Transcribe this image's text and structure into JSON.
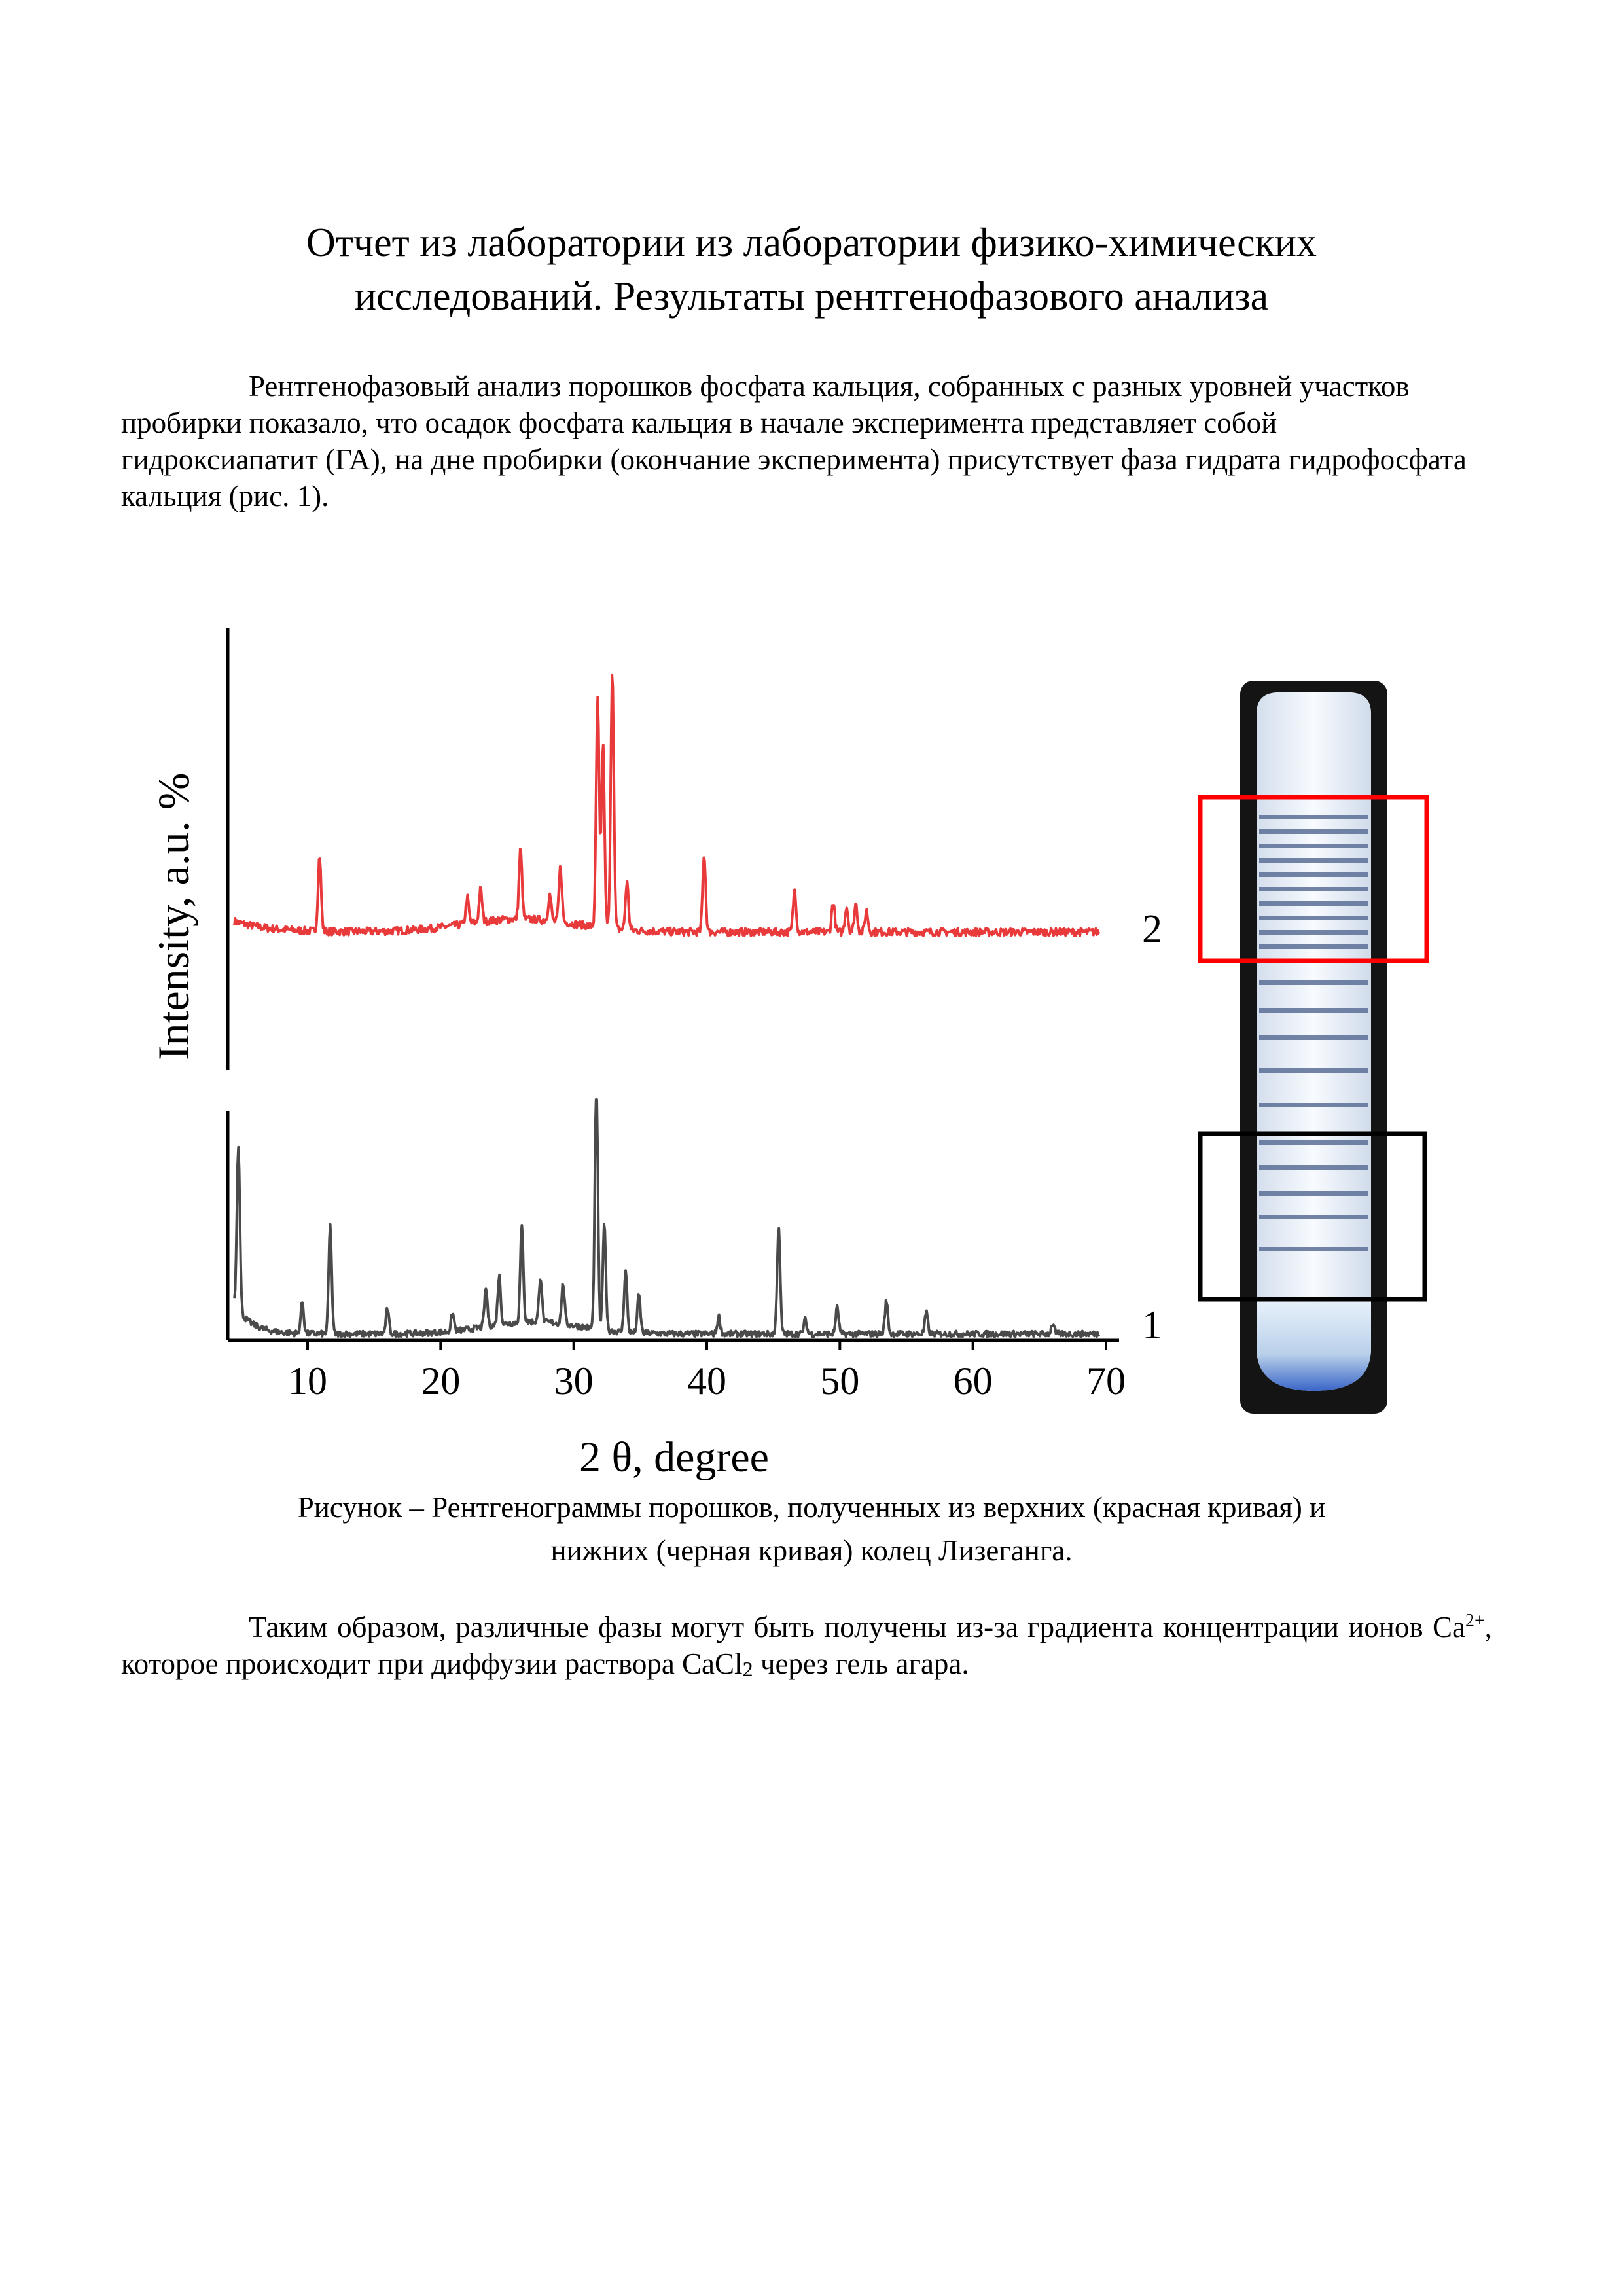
{
  "title": {
    "line1": "Отчет из лаборатории из лаборатории физико-химических",
    "line2": "исследований. Результаты рентгенофазового анализа"
  },
  "paragraph1": "Рентгенофазовый анализ порошков фосфата кальция, собранных с разных уровней участков пробирки показало, что осадок фосфата кальция в начале эксперимента представляет собой гидроксиапатит (ГА), на дне пробирки (окончание эксперимента) присутствует фаза гидрата гидрофосфата кальция (рис. 1).",
  "chart_data": {
    "type": "line",
    "ylabel": "Intensity, a.u. %",
    "xlabel": "2 θ, degree",
    "xlim": [
      4,
      70
    ],
    "x_ticks": [
      "10",
      "20",
      "30",
      "40",
      "50",
      "60",
      "70"
    ],
    "grid": false,
    "series": [
      {
        "name": "2",
        "color": "#e8393b",
        "baseline": 0.14,
        "peaks": [
          [
            10.9,
            0.35
          ],
          [
            22.0,
            0.12
          ],
          [
            23.0,
            0.15
          ],
          [
            26.0,
            0.32
          ],
          [
            28.2,
            0.12
          ],
          [
            29.0,
            0.25
          ],
          [
            31.8,
            1.05
          ],
          [
            32.2,
            0.85
          ],
          [
            32.9,
            1.2
          ],
          [
            34.0,
            0.22
          ],
          [
            39.8,
            0.36
          ],
          [
            46.6,
            0.2
          ],
          [
            49.5,
            0.14
          ],
          [
            50.5,
            0.12
          ],
          [
            51.2,
            0.13
          ],
          [
            52.0,
            0.1
          ]
        ]
      },
      {
        "name": "1",
        "color": "#4a4a4a",
        "baseline": 0.0,
        "peaks": [
          [
            4.8,
            0.95
          ],
          [
            9.6,
            0.18
          ],
          [
            11.7,
            0.62
          ],
          [
            16.0,
            0.14
          ],
          [
            20.9,
            0.1
          ],
          [
            23.4,
            0.22
          ],
          [
            24.4,
            0.28
          ],
          [
            26.1,
            0.55
          ],
          [
            27.5,
            0.26
          ],
          [
            29.2,
            0.23
          ],
          [
            31.7,
            1.45
          ],
          [
            32.3,
            0.6
          ],
          [
            33.9,
            0.35
          ],
          [
            34.9,
            0.22
          ],
          [
            40.9,
            0.1
          ],
          [
            45.4,
            0.62
          ],
          [
            47.4,
            0.08
          ],
          [
            49.8,
            0.15
          ],
          [
            53.5,
            0.19
          ],
          [
            56.5,
            0.12
          ],
          [
            66.0,
            0.06
          ]
        ]
      }
    ]
  },
  "tube": {
    "upper_box_color": "#ff0000",
    "lower_box_color": "#000000"
  },
  "caption": {
    "line1": "Рисунок – Рентгенограммы порошков, полученных из верхних (красная кривая) и",
    "line2": "нижних (черная кривая) колец Лизеганга."
  },
  "paragraph2": {
    "before": "Таким образом, различные фазы могут быть получены из-за градиента концентрации ионов Ca",
    "sup": "2+",
    "middle": ", которое происходит при диффузии раствора CaCl",
    "sub": "2",
    "after": " через гель агара."
  }
}
